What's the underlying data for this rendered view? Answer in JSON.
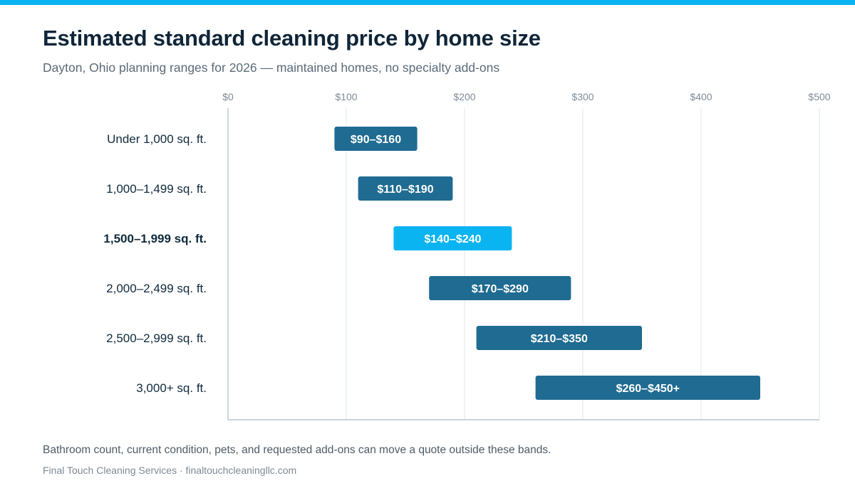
{
  "colors": {
    "accent": "#0AB4F0",
    "bar": "#1F6B92",
    "bar_highlight": "#0AB4F0",
    "grid": "#E4E8EC",
    "axis": "#BCC7D1",
    "tick_text": "#7D8C99",
    "category_text": "#0F2A3D",
    "label_text": "#FFFFFF"
  },
  "footer": {
    "note": "Bathroom count, current condition, pets, and requested add-ons can move a quote outside these bands.",
    "source": "Final Touch Cleaning Services · finaltouchcleaningllc.com"
  },
  "chart_data": {
    "type": "bar",
    "orientation": "horizontal-range",
    "title": "Estimated standard cleaning price by home size",
    "subtitle": "Dayton, Ohio planning ranges for 2026 — maintained homes, no specialty add-ons",
    "xlim": [
      0,
      500
    ],
    "xticks": [
      0,
      100,
      200,
      300,
      400,
      500
    ],
    "xtick_labels": [
      "$0",
      "$100",
      "$200",
      "$300",
      "$400",
      "$500"
    ],
    "xaxis_position": "top",
    "grid": true,
    "categories": [
      "Under 1,000 sq. ft.",
      "1,000–1,499 sq. ft.",
      "1,500–1,999 sq. ft.",
      "2,000–2,499 sq. ft.",
      "2,500–2,999 sq. ft.",
      "3,000+ sq. ft."
    ],
    "ranges": [
      {
        "low": 90,
        "high": 160,
        "label": "$90–$160",
        "highlight": false
      },
      {
        "low": 110,
        "high": 190,
        "label": "$110–$190",
        "highlight": false
      },
      {
        "low": 140,
        "high": 240,
        "label": "$140–$240",
        "highlight": true
      },
      {
        "low": 170,
        "high": 290,
        "label": "$170–$290",
        "highlight": false
      },
      {
        "low": 210,
        "high": 350,
        "label": "$210–$350",
        "highlight": false
      },
      {
        "low": 260,
        "high": 450,
        "label": "$260–$450+",
        "highlight": false
      }
    ]
  }
}
